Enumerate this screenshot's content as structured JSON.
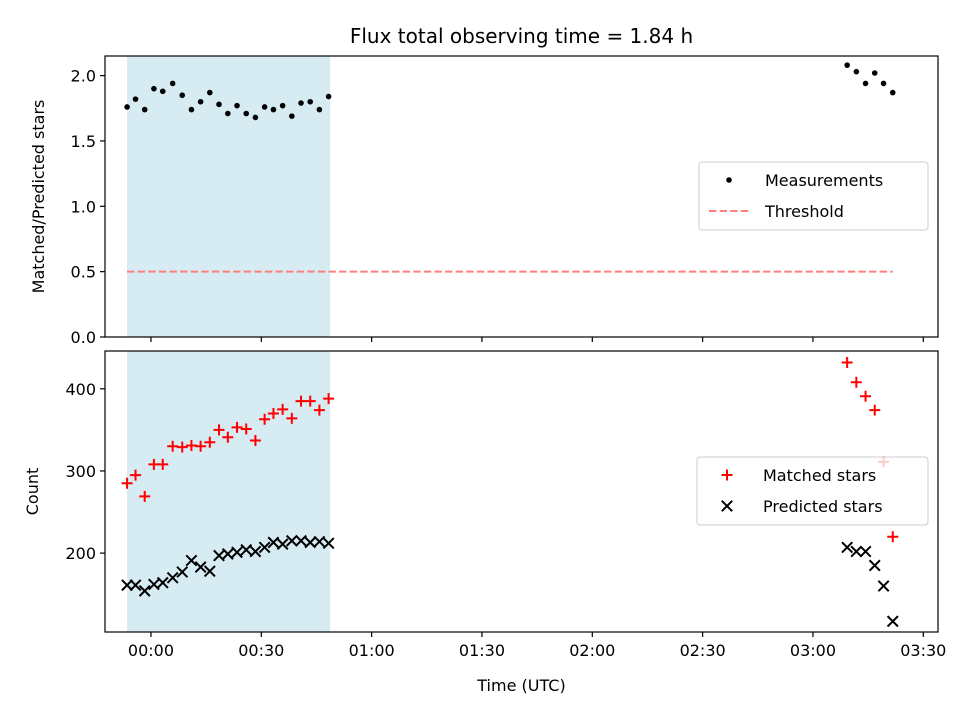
{
  "title": "Flux total observing time = 1.84 h",
  "xlabel": "Time (UTC)",
  "x_ticks": [
    {
      "t": 0,
      "label": "00:00"
    },
    {
      "t": 30,
      "label": "00:30"
    },
    {
      "t": 60,
      "label": "01:00"
    },
    {
      "t": 90,
      "label": "01:30"
    },
    {
      "t": 120,
      "label": "02:00"
    },
    {
      "t": 150,
      "label": "02:30"
    },
    {
      "t": 180,
      "label": "03:00"
    },
    {
      "t": 210,
      "label": "03:30"
    }
  ],
  "colors": {
    "shade": "#add8e6",
    "measurement": "#000000",
    "threshold": "#ff7f7f",
    "matched": "#ff0000",
    "predicted": "#000000"
  },
  "chart_data": [
    {
      "type": "scatter",
      "x_unit": "minutes from 00:00 UTC",
      "xlim": [
        -12.5,
        214
      ],
      "ylim": [
        0,
        2.15
      ],
      "ylabel": "Matched/Predicted stars",
      "yticks": [
        0.0,
        0.5,
        1.0,
        1.5,
        2.0
      ],
      "ytick_labels": [
        "0.0",
        "0.5",
        "1.0",
        "1.5",
        "2.0"
      ],
      "shaded_interval": [
        -6.5,
        48.7
      ],
      "series": [
        {
          "name": "Measurements",
          "marker": "dot",
          "x": [
            -6.5,
            -4.2,
            -1.7,
            0.8,
            3.2,
            5.9,
            8.5,
            11.0,
            13.5,
            16.0,
            18.5,
            20.9,
            23.4,
            25.9,
            28.4,
            30.9,
            33.3,
            35.8,
            38.3,
            40.8,
            43.3,
            45.8,
            48.3,
            189.3,
            191.8,
            194.3,
            196.8,
            199.2,
            201.7
          ],
          "values": [
            1.76,
            1.82,
            1.74,
            1.9,
            1.88,
            1.94,
            1.85,
            1.74,
            1.8,
            1.87,
            1.78,
            1.71,
            1.77,
            1.71,
            1.68,
            1.76,
            1.74,
            1.77,
            1.69,
            1.79,
            1.8,
            1.74,
            1.84,
            2.08,
            2.03,
            1.94,
            2.02,
            1.94,
            1.87
          ]
        },
        {
          "name": "Threshold",
          "marker": "dashed-line",
          "x": [
            -6.5,
            201.7
          ],
          "values": [
            0.5,
            0.5
          ]
        }
      ],
      "legend": [
        "Measurements",
        "Threshold"
      ],
      "legend_location": "center-right"
    },
    {
      "type": "scatter",
      "x_unit": "minutes from 00:00 UTC",
      "xlim": [
        -12.5,
        214
      ],
      "ylim": [
        104,
        446
      ],
      "ylabel": "Count",
      "yticks": [
        200,
        300,
        400
      ],
      "ytick_labels": [
        "200",
        "300",
        "400"
      ],
      "shaded_interval": [
        -6.5,
        48.7
      ],
      "series": [
        {
          "name": "Matched stars",
          "marker": "plus",
          "x": [
            -6.5,
            -4.2,
            -1.7,
            0.8,
            3.2,
            5.9,
            8.5,
            11.0,
            13.5,
            16.0,
            18.5,
            20.9,
            23.4,
            25.9,
            28.4,
            30.9,
            33.3,
            35.8,
            38.3,
            40.8,
            43.3,
            45.8,
            48.3,
            189.3,
            191.8,
            194.3,
            196.8,
            199.2,
            201.7
          ],
          "values": [
            285,
            295,
            269,
            308,
            308,
            330,
            329,
            331,
            330,
            335,
            350,
            341,
            353,
            351,
            337,
            363,
            370,
            375,
            364,
            385,
            385,
            374,
            388,
            432,
            408,
            391,
            374,
            311,
            220
          ]
        },
        {
          "name": "Predicted stars",
          "marker": "x",
          "x": [
            -6.5,
            -4.2,
            -1.7,
            0.8,
            3.2,
            5.9,
            8.5,
            11.0,
            13.5,
            16.0,
            18.5,
            20.9,
            23.4,
            25.9,
            28.4,
            30.9,
            33.3,
            35.8,
            38.3,
            40.8,
            43.3,
            45.8,
            48.3,
            189.3,
            191.8,
            194.3,
            196.8,
            199.2,
            201.7
          ],
          "values": [
            161,
            161,
            154,
            162,
            164,
            170,
            177,
            191,
            183,
            178,
            197,
            199,
            201,
            204,
            202,
            207,
            213,
            211,
            215,
            215,
            213,
            214,
            212,
            207,
            202,
            202,
            185,
            160,
            117
          ]
        }
      ],
      "legend": [
        "Matched stars",
        "Predicted stars"
      ],
      "legend_location": "center-right"
    }
  ]
}
